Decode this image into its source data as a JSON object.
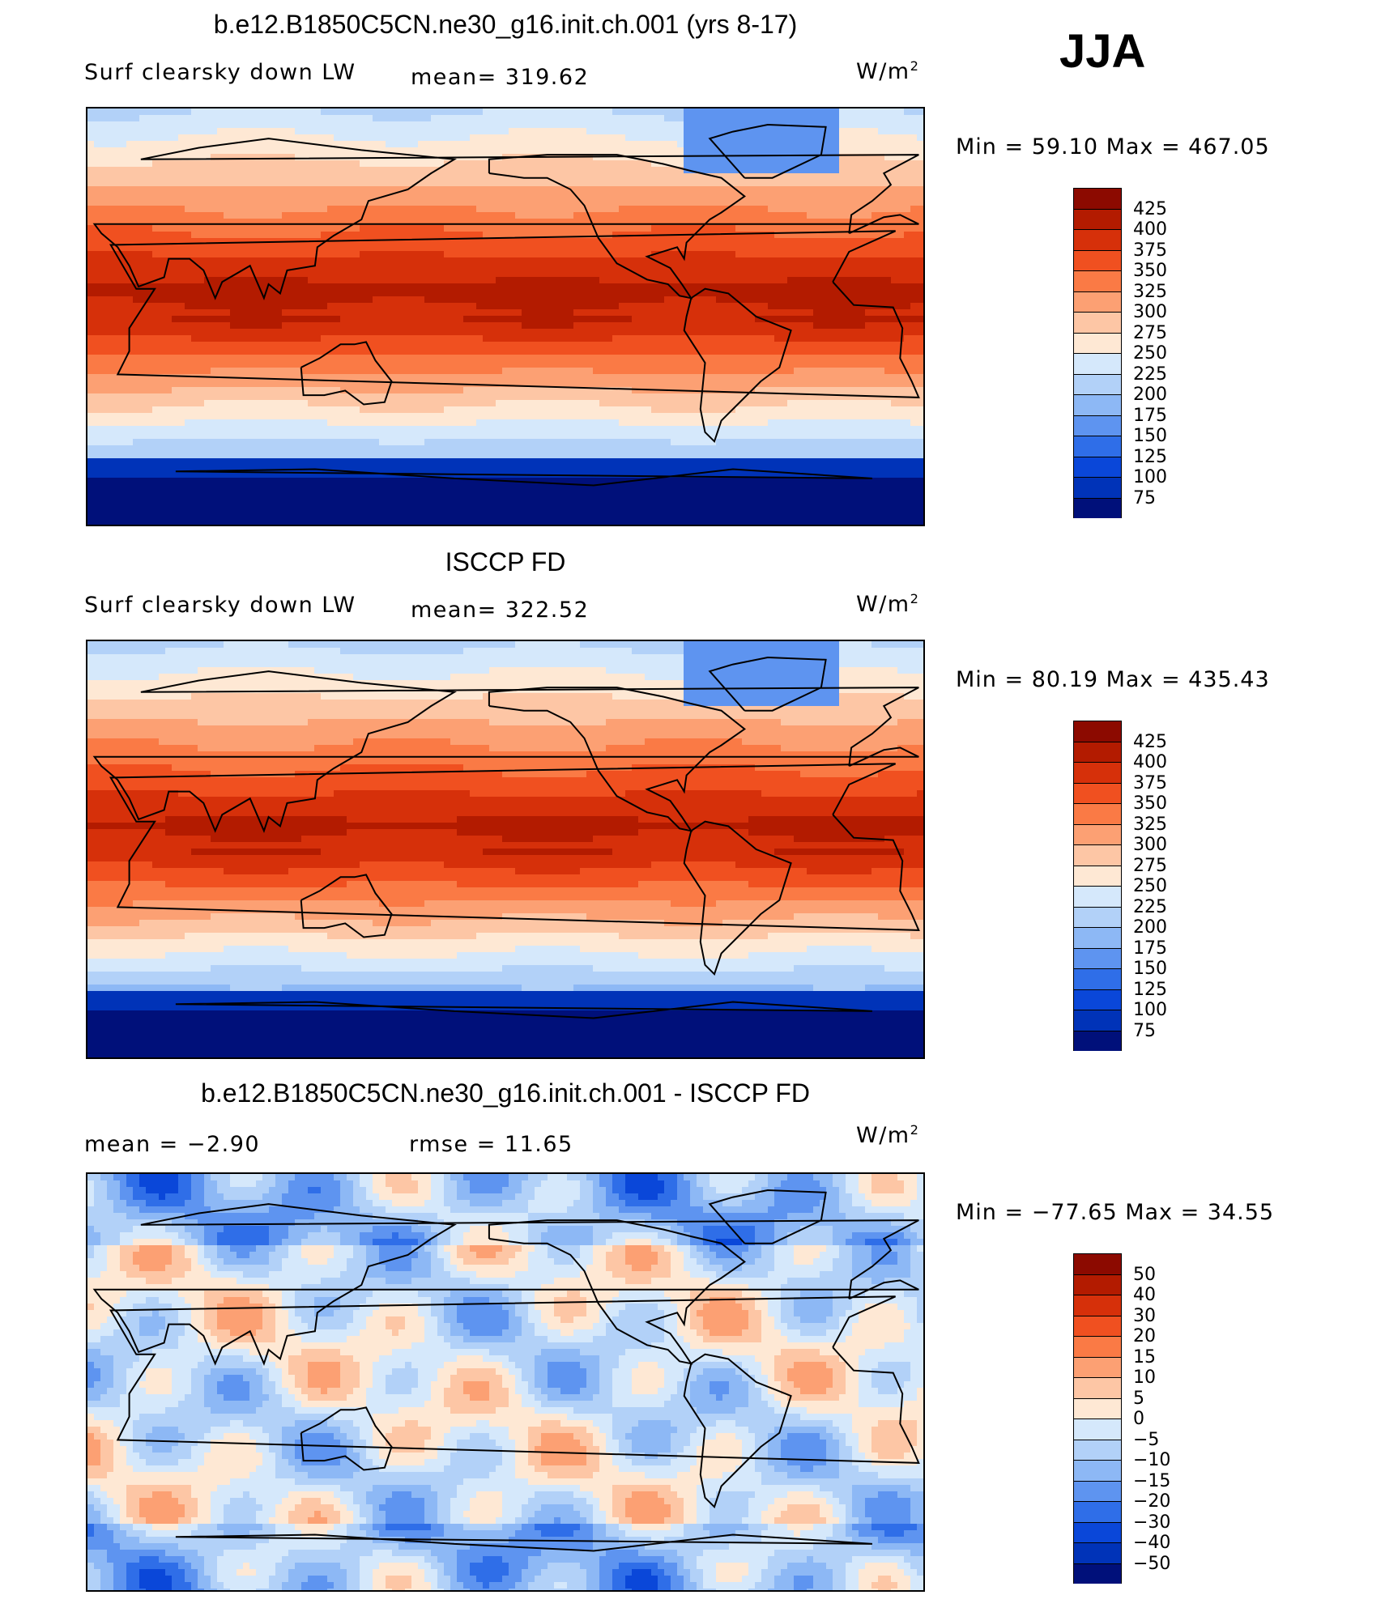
{
  "season_label": "JJA",
  "panels": [
    {
      "title": "b.e12.B1850C5CN.ne30_g16.init.ch.001 (yrs 8-17)",
      "left_label": "Surf clearsky down LW",
      "center_label": "mean=  319.62",
      "units": "W/m",
      "units_sup": "2",
      "minmax": "Min =   59.10  Max  =  467.05",
      "colorbar": "abs"
    },
    {
      "title": "ISCCP FD",
      "left_label": "Surf clearsky down LW",
      "center_label": "mean=  322.52",
      "units": "W/m",
      "units_sup": "2",
      "minmax": "Min =   80.19  Max  =  435.43",
      "colorbar": "abs"
    },
    {
      "title": "b.e12.B1850C5CN.ne30_g16.init.ch.001 - ISCCP FD",
      "left_label": "mean =    −2.90",
      "center_label": "rmse =    11.65",
      "units": "W/m",
      "units_sup": "2",
      "minmax": "Min = −77.65  Max =    34.55",
      "colorbar": "diff"
    }
  ],
  "colorbars": {
    "abs": {
      "labels": [
        "425",
        "400",
        "375",
        "350",
        "325",
        "300",
        "275",
        "250",
        "225",
        "200",
        "175",
        "150",
        "125",
        "100",
        "75"
      ],
      "colors": [
        "#8c0a00",
        "#b31b00",
        "#d6300a",
        "#f05020",
        "#fa7a45",
        "#fca073",
        "#fdc6a5",
        "#fee8d4",
        "#d5e8fb",
        "#b2d1f8",
        "#8db8f5",
        "#5e94f0",
        "#2f6ee8",
        "#0a47d9",
        "#0033b8",
        "#00107a"
      ]
    },
    "diff": {
      "labels": [
        "50",
        "40",
        "30",
        "20",
        "15",
        "10",
        "5",
        "0",
        "−5",
        "−10",
        "−15",
        "−20",
        "−30",
        "−40",
        "−50"
      ],
      "colors": [
        "#8c0a00",
        "#b31b00",
        "#d6300a",
        "#f05020",
        "#fa7a45",
        "#fca073",
        "#fdc6a5",
        "#fee8d4",
        "#d5e8fb",
        "#b2d1f8",
        "#8db8f5",
        "#5e94f0",
        "#2f6ee8",
        "#0a47d9",
        "#0033b8",
        "#00107a"
      ]
    }
  },
  "chart_data": [
    {
      "type": "heatmap",
      "title": "b.e12.B1850C5CN.ne30_g16.init.ch.001 (yrs 8-17)",
      "variable": "Surf clearsky down LW",
      "units": "W/m2",
      "season": "JJA",
      "mean": 319.62,
      "min": 59.1,
      "max": 467.05,
      "levels": [
        75,
        100,
        125,
        150,
        175,
        200,
        225,
        250,
        275,
        300,
        325,
        350,
        375,
        400,
        425
      ]
    },
    {
      "type": "heatmap",
      "title": "ISCCP FD",
      "variable": "Surf clearsky down LW",
      "units": "W/m2",
      "season": "JJA",
      "mean": 322.52,
      "min": 80.19,
      "max": 435.43,
      "levels": [
        75,
        100,
        125,
        150,
        175,
        200,
        225,
        250,
        275,
        300,
        325,
        350,
        375,
        400,
        425
      ]
    },
    {
      "type": "heatmap",
      "title": "b.e12.B1850C5CN.ne30_g16.init.ch.001 - ISCCP FD",
      "units": "W/m2",
      "season": "JJA",
      "mean": -2.9,
      "rmse": 11.65,
      "min": -77.65,
      "max": 34.55,
      "levels": [
        -50,
        -40,
        -30,
        -20,
        -15,
        -10,
        -5,
        0,
        5,
        10,
        15,
        20,
        30,
        40,
        50
      ]
    }
  ]
}
